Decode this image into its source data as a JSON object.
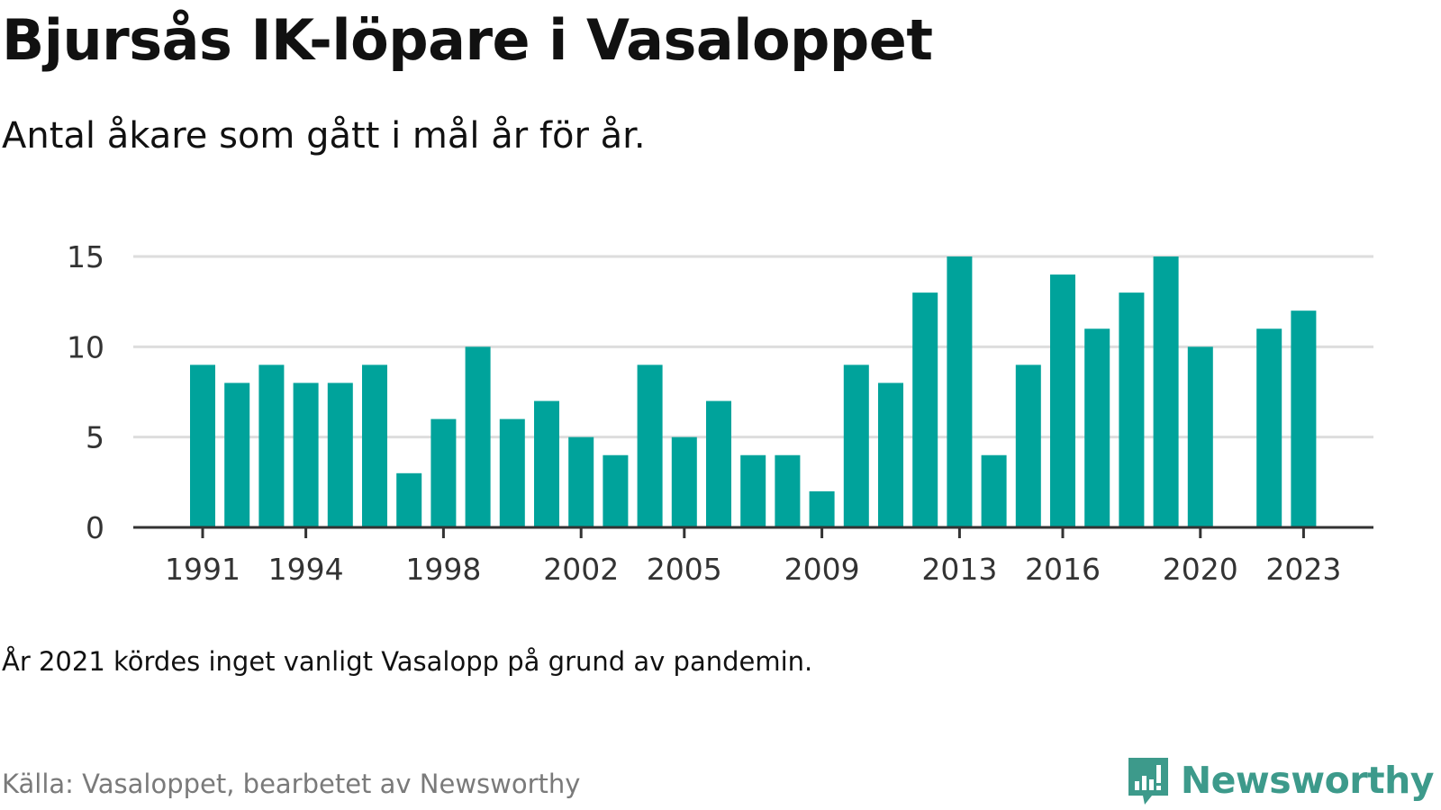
{
  "header": {
    "title": "Bjursås IK-löpare i Vasaloppet",
    "subtitle": "Antal åkare som gått i mål år för år."
  },
  "footer": {
    "note": "År 2021 kördes inget vanligt Vasalopp på grund av pandemin.",
    "source": "Källa: Vasaloppet, bearbetet av Newsworthy",
    "brand": "Newsworthy",
    "brand_icon": "newsworthy-logo-icon"
  },
  "colors": {
    "bar": "#00a39b",
    "grid": "#dddddd",
    "axis": "#333333",
    "brand": "#3d9a8b"
  },
  "chart_data": {
    "type": "bar",
    "categories": [
      "1991",
      "1992",
      "1993",
      "1994",
      "1995",
      "1996",
      "1997",
      "1998",
      "1999",
      "2000",
      "2001",
      "2002",
      "2003",
      "2004",
      "2005",
      "2006",
      "2007",
      "2008",
      "2009",
      "2010",
      "2011",
      "2012",
      "2013",
      "2014",
      "2015",
      "2016",
      "2017",
      "2018",
      "2019",
      "2020",
      "2021",
      "2022",
      "2023"
    ],
    "values": [
      9,
      8,
      9,
      8,
      8,
      9,
      3,
      6,
      10,
      6,
      7,
      5,
      4,
      9,
      5,
      7,
      4,
      4,
      2,
      9,
      8,
      13,
      15,
      4,
      9,
      14,
      11,
      13,
      15,
      10,
      null,
      11,
      12
    ],
    "x_tick_labels": [
      "1991",
      "1994",
      "1998",
      "2002",
      "2005",
      "2009",
      "2013",
      "2016",
      "2020",
      "2023"
    ],
    "y_ticks": [
      0,
      5,
      10,
      15
    ],
    "ylim": [
      0,
      15
    ],
    "grid": true,
    "legend": "none"
  }
}
